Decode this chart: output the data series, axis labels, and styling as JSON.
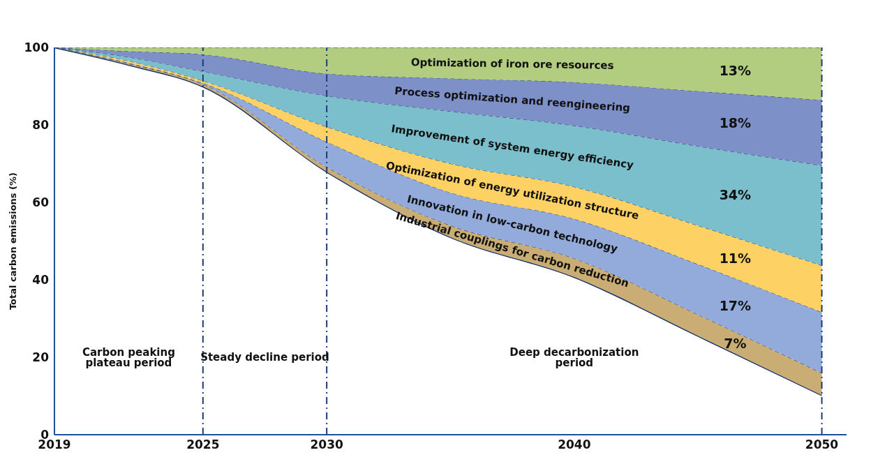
{
  "chart_data": {
    "type": "area",
    "stacked": true,
    "ylabel": "Total carbon emissions (%)",
    "x": [
      2019,
      2022,
      2025,
      2030,
      2035,
      2040,
      2045,
      2050
    ],
    "xlim": [
      2019,
      2051
    ],
    "xticks": [
      2019,
      2025,
      2030,
      2040,
      2050
    ],
    "ylim": [
      0,
      100
    ],
    "yticks": [
      0,
      20,
      40,
      60,
      80,
      100
    ],
    "series": [
      {
        "type": "area",
        "color": "#ffffff",
        "line_style": "solid",
        "values": [
          100,
          95.5,
          89.9,
          67.9,
          51,
          40.7,
          25.5,
          10.2
        ]
      },
      {
        "name": "Industrial couplings for carbon reduction",
        "color": "#c9ad74",
        "line_style": "dashed",
        "values": [
          0,
          0.3,
          0.6,
          1.2,
          3,
          4.8,
          5.5,
          5.7
        ]
      },
      {
        "name": "Innovation in low-carbon technology",
        "color": "#93abdb",
        "line_style": "dashed",
        "values": [
          0,
          0.2,
          0.3,
          6.5,
          8.5,
          10.2,
          13,
          15.7
        ]
      },
      {
        "name": "Optimization of energy utilization structure",
        "color": "#fdd163",
        "line_style": "dashed",
        "values": [
          0,
          0.5,
          0.6,
          3.9,
          7.5,
          8.3,
          10,
          12.1
        ]
      },
      {
        "name": "Improvement of system energy efficiency",
        "color": "#7cbfcc",
        "line_style": "dashed",
        "values": [
          0,
          1,
          2.4,
          8,
          13.5,
          15.8,
          20.5,
          25.8
        ]
      },
      {
        "name": "Process optimization and reengineering",
        "color": "#7d90c8",
        "line_style": "dashed",
        "values": [
          0,
          1.5,
          4.4,
          5.7,
          8.5,
          11.2,
          14.2,
          16.9
        ]
      },
      {
        "name": "Optimization of iron ore resources",
        "color": "#b2cc80",
        "line_style": "dashed",
        "values": [
          0,
          1,
          1.8,
          6.8,
          8,
          9,
          11.3,
          13.6
        ]
      }
    ],
    "ref_lines": [
      {
        "axis": "x",
        "value": 2025,
        "color": "#1f3b73",
        "line_style": "dashed"
      },
      {
        "axis": "x",
        "value": 2030,
        "color": "#1f3b73",
        "line_style": "dashed"
      },
      {
        "axis": "x",
        "value": 2050,
        "color": "#1f3b73",
        "line_style": "dashed"
      }
    ],
    "annotations": [
      "13%",
      "18%",
      "34%",
      "11%",
      "17%",
      "7%",
      "Carbon peaking plateau period",
      "Steady decline period",
      "Deep decarbonization period"
    ]
  }
}
